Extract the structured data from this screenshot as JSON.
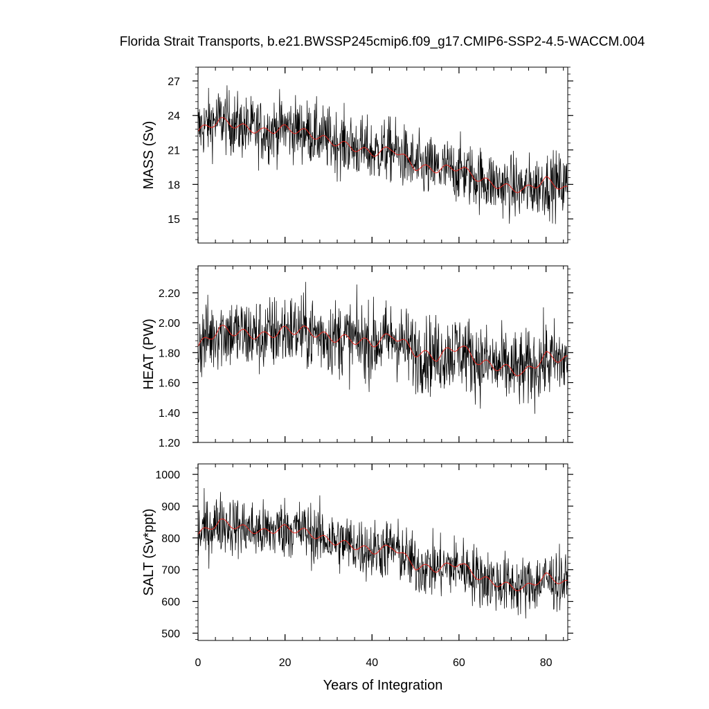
{
  "title": "Florida Strait Transports, b.e21.BWSSP245cmip6.f09_g17.CMIP6-SSP2-4.5-WACCM.004",
  "colors": {
    "raw": "#000000",
    "smooth": "#e8231c",
    "frame": "#000000"
  },
  "chart_data": [
    {
      "type": "line",
      "panel": "mass",
      "xlabel": "Years of Integration",
      "ylabel": "MASS (Sv)",
      "xlim": [
        0,
        85
      ],
      "ylim": [
        12.9,
        28.2
      ],
      "xticks": [
        0,
        20,
        40,
        60,
        80
      ],
      "yticks": [
        15,
        18,
        21,
        24,
        27
      ],
      "ytick_labels": [
        "15",
        "18",
        "21",
        "24",
        "27"
      ],
      "grid": false,
      "series": [
        {
          "role": "monthly",
          "x": [
            0,
            5,
            10,
            15,
            20,
            25,
            30,
            35,
            40,
            45,
            50,
            55,
            60,
            65,
            70,
            75,
            80,
            85
          ],
          "y": [
            22.8,
            23.7,
            23.0,
            22.6,
            23.0,
            22.6,
            21.9,
            21.4,
            20.8,
            21.0,
            19.6,
            19.3,
            19.2,
            18.5,
            17.9,
            17.6,
            18.1,
            17.9
          ]
        },
        {
          "role": "annual-mean",
          "x": [
            0,
            5,
            10,
            15,
            20,
            25,
            30,
            35,
            40,
            45,
            50,
            55,
            60,
            65,
            70,
            75,
            80,
            85
          ],
          "y": [
            22.6,
            23.6,
            23.0,
            22.6,
            22.9,
            22.5,
            21.8,
            21.3,
            20.7,
            21.1,
            19.5,
            19.3,
            19.5,
            18.4,
            17.8,
            17.5,
            18.4,
            17.5
          ]
        }
      ]
    },
    {
      "type": "line",
      "panel": "heat",
      "xlabel": "Years of Integration",
      "ylabel": "HEAT (PW)",
      "xlim": [
        0,
        85
      ],
      "ylim": [
        1.2,
        2.38
      ],
      "xticks": [
        0,
        20,
        40,
        60,
        80
      ],
      "yticks": [
        1.2,
        1.4,
        1.6,
        1.8,
        2.0,
        2.2
      ],
      "ytick_labels": [
        "1.20",
        "1.40",
        "1.60",
        "1.80",
        "2.00",
        "2.20"
      ],
      "grid": false,
      "series": [
        {
          "role": "monthly",
          "x": [
            0,
            5,
            10,
            15,
            20,
            25,
            30,
            35,
            40,
            45,
            50,
            55,
            60,
            65,
            70,
            75,
            80,
            85
          ],
          "y": [
            1.86,
            1.95,
            1.92,
            1.91,
            1.95,
            1.94,
            1.91,
            1.89,
            1.86,
            1.9,
            1.8,
            1.78,
            1.82,
            1.74,
            1.7,
            1.68,
            1.75,
            1.74
          ]
        },
        {
          "role": "annual-mean",
          "x": [
            0,
            5,
            10,
            15,
            20,
            25,
            30,
            35,
            40,
            45,
            50,
            55,
            60,
            65,
            70,
            75,
            80,
            85
          ],
          "y": [
            1.84,
            1.96,
            1.93,
            1.91,
            1.95,
            1.95,
            1.9,
            1.89,
            1.86,
            1.92,
            1.8,
            1.77,
            1.85,
            1.73,
            1.7,
            1.66,
            1.78,
            1.75
          ]
        }
      ]
    },
    {
      "type": "line",
      "panel": "salt",
      "xlabel": "Years of Integration",
      "ylabel": "SALT (Sv*ppt)",
      "xlim": [
        0,
        85
      ],
      "ylim": [
        477,
        1033
      ],
      "xticks": [
        0,
        20,
        40,
        60,
        80
      ],
      "yticks": [
        500,
        600,
        700,
        800,
        900,
        1000
      ],
      "ytick_labels": [
        "500",
        "600",
        "700",
        "800",
        "900",
        "1000"
      ],
      "grid": false,
      "series": [
        {
          "role": "monthly",
          "x": [
            0,
            5,
            10,
            15,
            20,
            25,
            30,
            35,
            40,
            45,
            50,
            55,
            60,
            65,
            70,
            75,
            80,
            85
          ],
          "y": [
            812,
            850,
            832,
            818,
            833,
            820,
            795,
            780,
            760,
            768,
            713,
            705,
            712,
            675,
            655,
            645,
            670,
            660
          ]
        },
        {
          "role": "annual-mean",
          "x": [
            0,
            5,
            10,
            15,
            20,
            25,
            30,
            35,
            40,
            45,
            50,
            55,
            60,
            65,
            70,
            75,
            80,
            85
          ],
          "y": [
            810,
            852,
            832,
            818,
            832,
            818,
            792,
            778,
            758,
            772,
            710,
            702,
            722,
            672,
            652,
            640,
            680,
            655
          ]
        }
      ]
    }
  ]
}
